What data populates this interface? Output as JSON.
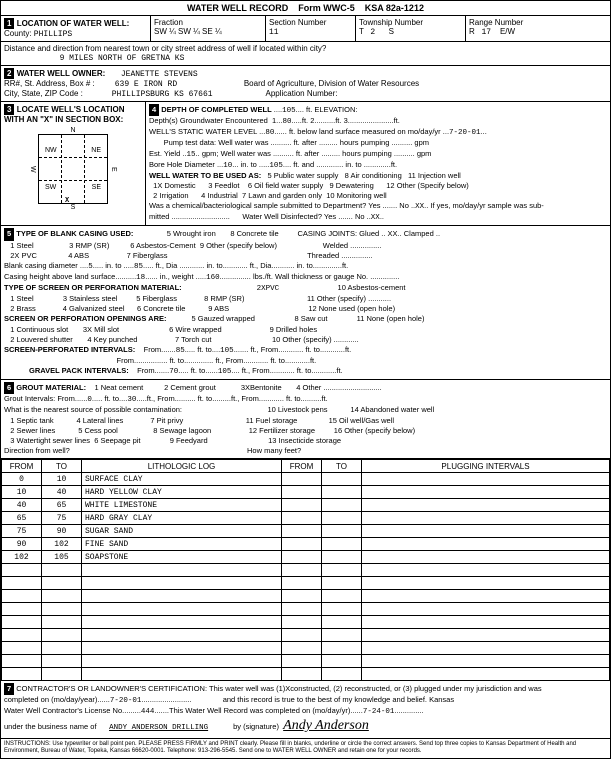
{
  "form": {
    "title": "WATER WELL RECORD",
    "formNo": "Form WWC-5",
    "ksa": "KSA 82a-1212"
  },
  "loc": {
    "county": "PHILLIPS",
    "fraction": {
      "sw": "SW",
      "se1": "¼ SW",
      "se2": "¼ SE",
      "se3": "¼"
    },
    "sectionNumber": "11",
    "township": "2",
    "townshipS": "S",
    "range": "17",
    "rangeEW": "E/W",
    "distance": "9 miles North of GRETNA KS"
  },
  "owner": {
    "name": "JEANETTE STEVENS",
    "addr": "639 E IRON RD",
    "city": "PHILLIPSBURG KS  67661",
    "board": "Board of Agriculture, Division of Water Resources",
    "appNo": "Application Number:"
  },
  "depth": {
    "completed": "105",
    "elev": "",
    "gwEnc1": "1",
    "gwEnc1ft": "80",
    "gwEnc2": "2",
    "gwEnc3": "3",
    "swlFt": "80",
    "swlDate": "7-20-01",
    "estYield": "15",
    "boreDia": "10",
    "boreTo": "105",
    "wasChem": "XX",
    "disinfect": "XX"
  },
  "depthLabels": {
    "title": "DEPTH OF COMPLETED WELL",
    "elev": "ft. ELEVATION:",
    "gwEncTitle": "Depth(s) Groundwater Encountered",
    "swlTitle": "WELL'S STATIC WATER LEVEL",
    "swlUnit": "ft. below land surface measured on mo/day/yr",
    "pumpTest": "Pump test data: Well water was",
    "after": "ft. after",
    "hours": "hours pumping",
    "gpm": "gpm",
    "estYield": "Est. Yield",
    "gpmLbl": "gpm",
    "wellWas": "Well water was",
    "boreDia": "Bore Hole Diameter",
    "into": "in. to",
    "ftand": "ft. and",
    "into2": "in. to",
    "useTitle": "WELL WATER TO BE USED AS:",
    "uses": [
      "1X Domestic",
      "2 Irrigation",
      "3 Feedlot",
      "4 Industrial",
      "5 Public water supply",
      "6 Oil field water supply",
      "7 Lawn and garden only",
      "8 Air conditioning",
      "9 Dewatering",
      "10 Monitoring well",
      "11 Injection well",
      "12 Other (Specify below)"
    ],
    "chemQ": "Was a chemical/bacteriological sample submitted to Department?  Yes",
    "chemNo": "No",
    "chemIf": "If yes, mo/day/yr sample was sub-",
    "mitted": "mitted",
    "waterDis": "Water Well Disinfected?  Yes",
    "noLbl": "No"
  },
  "casing": {
    "title": "TYPE OF BLANK CASING USED:",
    "opts": [
      "1 Steel",
      "2X PVC",
      "3 RMP (SR)",
      "4 ABS",
      "5 Wrought iron",
      "6 Asbestos-Cement",
      "7 Fiberglass",
      "8 Concrete tile",
      "9 Other (specify below)"
    ],
    "joints": "CASING JOINTS: Glued .. XX.. Clamped ..",
    "welded": "Welded",
    "threaded": "Threaded",
    "blankDia": "Blank casing diameter",
    "blankDiaV": "5",
    "into": "in. to",
    "blankTo": "85",
    "ftDia": "ft., Dia",
    "into2": "in. to",
    "ftDia2": "ft., Dia",
    "into3": "in. to",
    "heightLbl": "Casing height above land surface",
    "height": "18",
    "weightLbl": "in., weight",
    "weight": "160",
    "lbsLbl": "lbs./ft. Wall thickness or gauge No.",
    "screenTitle": "TYPE OF SCREEN OR PERFORATION MATERIAL:",
    "screenMat": "2XPVC",
    "screenOpts": [
      "1 Steel",
      "2 Brass",
      "3 Stainless steel",
      "4 Galvanized steel",
      "5 Fiberglass",
      "6 Concrete tile",
      "7 c",
      "8 RMP (SR)",
      "9 ABS",
      "10 Asbestos-cement",
      "11 Other (specify)",
      "12 None used (open hole)"
    ],
    "openTitle": "SCREEN OR PERFORATION OPENINGS ARE:",
    "openOpts": [
      "1 Continuous slot",
      "2 Louvered shutter",
      "3X Mill slot",
      "4 Key punched",
      "5 Gauzed wrapped",
      "6 Wire wrapped",
      "7 Torch cut",
      "8 Saw cut",
      "9 Drilled holes",
      "10 Other (specify)",
      "11 None (open hole)"
    ],
    "spIntTitle": "SCREEN-PERFORATED INTERVALS:",
    "from": "From",
    "to": "ft. to",
    "toft": "ft., From",
    "sp1": "85",
    "sp2": "105",
    "gpTitle": "GRAVEL PACK INTERVALS:",
    "gp1": "70",
    "gp2": "105"
  },
  "grout": {
    "title": "GROUT MATERIAL:",
    "opts": [
      "1 Neat cement",
      "2 Cement grout",
      "3XBentonite",
      "4 Other"
    ],
    "intTitle": "Grout Intervals:  From",
    "from1": "0",
    "to1": "30",
    "ftto": "ft. to",
    "ftFrom": "ft., From",
    "contamTitle": "What is the nearest source of possible contamination:",
    "contamOpts": [
      "1 Septic tank",
      "2 Sewer lines",
      "3 Watertight sewer lines",
      "4 Lateral lines",
      "5 Cess pool",
      "6 Seepage pit",
      "7 Pit privy",
      "8 Sewage lagoon",
      "9 Feedyard",
      "10 Livestock pens",
      "11 Fuel storage",
      "12 Fertilizer storage",
      "13 Insecticide storage",
      "14 Abandoned water well",
      "15 Oil well/Gas well",
      "16 Other (specify below)"
    ],
    "dirTitle": "Direction from well?",
    "howMany": "How many feet?"
  },
  "log": {
    "hdrs": [
      "FROM",
      "TO",
      "LITHOLOGIC LOG",
      "FROM",
      "TO",
      "PLUGGING INTERVALS"
    ],
    "rows": [
      [
        "0",
        "10",
        "SURFACE CLAY",
        "",
        "",
        ""
      ],
      [
        "10",
        "40",
        "HARD YELLOW CLAY",
        "",
        "",
        ""
      ],
      [
        "40",
        "65",
        "WHITE LIMESTONE",
        "",
        "",
        ""
      ],
      [
        "65",
        "75",
        "HARD GRAY CLAY",
        "",
        "",
        ""
      ],
      [
        "75",
        "90",
        "SUGAR SAND",
        "",
        "",
        ""
      ],
      [
        "90",
        "102",
        "FINE SAND",
        "",
        "",
        ""
      ],
      [
        "102",
        "105",
        "SOAPSTONE",
        "",
        "",
        ""
      ],
      [
        "",
        "",
        "",
        "",
        "",
        ""
      ],
      [
        "",
        "",
        "",
        "",
        "",
        ""
      ],
      [
        "",
        "",
        "",
        "",
        "",
        ""
      ],
      [
        "",
        "",
        "",
        "",
        "",
        ""
      ],
      [
        "",
        "",
        "",
        "",
        "",
        ""
      ],
      [
        "",
        "",
        "",
        "",
        "",
        ""
      ],
      [
        "",
        "",
        "",
        "",
        "",
        ""
      ],
      [
        "",
        "",
        "",
        "",
        "",
        ""
      ],
      [
        "",
        "",
        "",
        "",
        "",
        ""
      ]
    ]
  },
  "cert": {
    "text1": "CONTRACTOR'S OR LANDOWNER'S CERTIFICATION: This water well was (1)Xconstructed, (2) reconstructed, or (3) plugged under my jurisdiction and was",
    "text2": "completed on (mo/day/year)",
    "date1": "7-20-01",
    "text2b": "and this record is true to the best of my knowledge and belief. Kansas",
    "text3": "Water Well Contractor's License No.",
    "lic": "444",
    "text3b": "This Water Well Record was completed on (mo/day/yr)",
    "date2": "7-24-01",
    "text4": "under the business name of",
    "biz": "ANDY ANDERSON DRILLING",
    "sigLbl": "by (signature)",
    "sig": "Andy Anderson",
    "instr": "INSTRUCTIONS: Use typewriter or ball point pen. PLEASE PRESS FIRMLY and PRINT clearly. Please fill in blanks, underline or circle the correct answers. Send top three copies to Kansas Department of Health and Environment, Bureau of Water, Topeka, Kansas 66620-0001. Telephone: 913-296-5545. Send one to WATER WELL OWNER and retain one for your records."
  },
  "sectionBox": {
    "n": "N",
    "s": "S",
    "e": "E",
    "w": "W",
    "nw": "NW",
    "ne": "NE",
    "sw": "SW",
    "se": "SE",
    "x": "X"
  },
  "sideLabels": [
    "OFFICE USE ONLY",
    "T",
    "R",
    "E/W",
    "SEC"
  ]
}
